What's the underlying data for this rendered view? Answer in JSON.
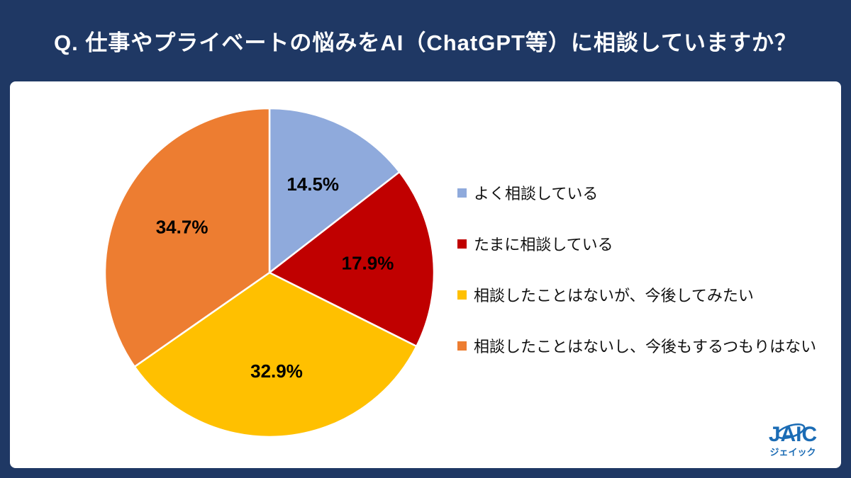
{
  "header": {
    "title": "Q. 仕事やプライベートの悩みをAI（ChatGPT等）に相談していますか？"
  },
  "chart_data": {
    "type": "pie",
    "title": "仕事やプライベートの悩みをAI（ChatGPT等）に相談していますか？",
    "start_angle_deg": 0,
    "direction": "clockwise",
    "legend_position": "right",
    "slices": [
      {
        "label": "よく相談している",
        "value": 14.5,
        "display": "14.5%",
        "color": "#8FAADC"
      },
      {
        "label": "たまに相談している",
        "value": 17.9,
        "display": "17.9%",
        "color": "#C00000"
      },
      {
        "label": "相談したことはないが、今後してみたい",
        "value": 32.9,
        "display": "32.9%",
        "color": "#FFC000"
      },
      {
        "label": "相談したことはないし、今後もするつもりはない",
        "value": 34.7,
        "display": "34.7%",
        "color": "#ED7D31"
      }
    ]
  },
  "footer": {
    "logo_text": "JAIC",
    "logo_subtext": "ジェイック"
  }
}
